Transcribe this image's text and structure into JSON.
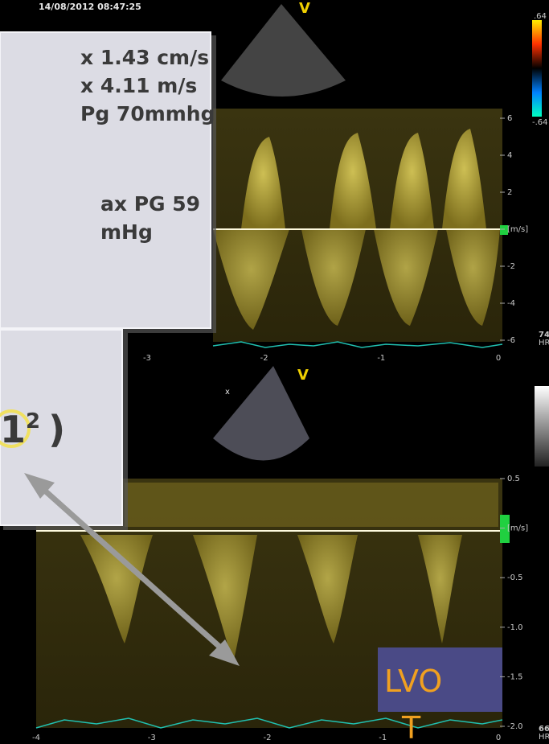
{
  "timestamp": "14/08/2012 08:47:25",
  "top_panel": {
    "view_label": "V",
    "color_scale": [
      ".64",
      "-.64"
    ],
    "velocity_ticks": [
      "6",
      "4",
      "2",
      "[m/s]",
      "-2",
      "-4",
      "-6"
    ],
    "time_ticks": [
      "-3",
      "-2",
      "-1",
      "0"
    ],
    "heart_rate": "74",
    "hr_unit": "HR"
  },
  "bottom_panel": {
    "view_label": "V",
    "marker": "x",
    "velocity_ticks": [
      "0.5",
      "[m/s]",
      "-0.5",
      "-1.0",
      "-1.5",
      "-2.0"
    ],
    "time_ticks": [
      "-4",
      "-3",
      "-2",
      "-1",
      "0"
    ],
    "heart_rate": "66",
    "hr_unit": "HR"
  },
  "measurements_box": {
    "lines": [
      "x 1.43 cm/s",
      "x 4.11 m/s",
      "Pg 70mmhg",
      "ax PG 59",
      "mHg"
    ]
  },
  "formula_box": {
    "base": "1",
    "sup": "2",
    "close": ")"
  },
  "lvot_label": {
    "line1": "LVO",
    "line2": "T"
  }
}
